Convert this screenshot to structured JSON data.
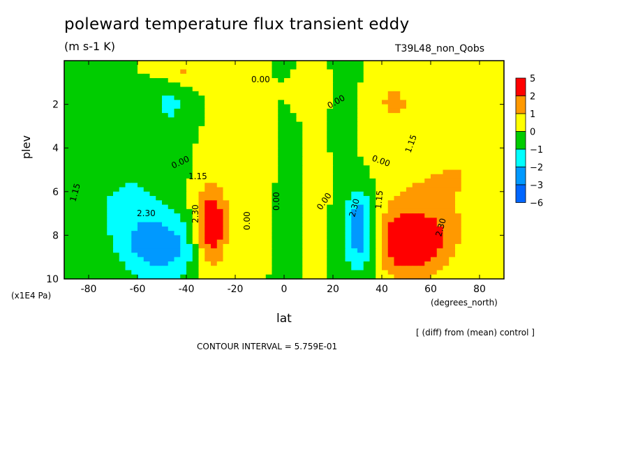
{
  "chart_data": {
    "type": "heatmap",
    "title": "poleward temperature flux transient eddy",
    "units": "(m s-1 K)",
    "run_label": "T39L48_non_Qobs",
    "xlabel": "lat",
    "x_units": "(degrees_north)",
    "ylabel": "plev",
    "y_units": "(x1E4 Pa)",
    "xlim": [
      -90,
      90
    ],
    "ylim": [
      10,
      0
    ],
    "x_ticks": [
      -80,
      -60,
      -40,
      -20,
      0,
      20,
      40,
      60,
      80
    ],
    "y_ticks": [
      2,
      4,
      6,
      8,
      10
    ],
    "legend": {
      "placement": "right",
      "labels": [
        "5",
        "2",
        "1",
        "0",
        "−1",
        "−2",
        "−3",
        "−6"
      ],
      "colors": [
        "#ff0000",
        "#ff9900",
        "#ffff00",
        "#00cc00",
        "#00ffff",
        "#0099ff",
        "#0066ff"
      ]
    },
    "contour_labels": [
      "0.00",
      "1.15",
      "2.30"
    ],
    "diff_note": "[ (diff) from (mean) control ]",
    "contour_interval": "CONTOUR INTERVAL = 5.759E-01",
    "features": [
      {
        "name": "NH max",
        "lat": 52,
        "plev": 8.5,
        "value": 3.0
      },
      {
        "name": "SH max",
        "lat": -30,
        "plev": 7.5,
        "value": 3.2
      },
      {
        "name": "SH min",
        "lat": -50,
        "plev": 8.7,
        "value": -2.6
      },
      {
        "name": "NH min",
        "lat": 30,
        "plev": 8.0,
        "value": -3.2
      },
      {
        "name": "NH strat max",
        "lat": 45,
        "plev": 2.0,
        "value": 1.3
      },
      {
        "name": "SH strat min",
        "lat": -47,
        "plev": 2.0,
        "value": -1.3
      }
    ]
  }
}
